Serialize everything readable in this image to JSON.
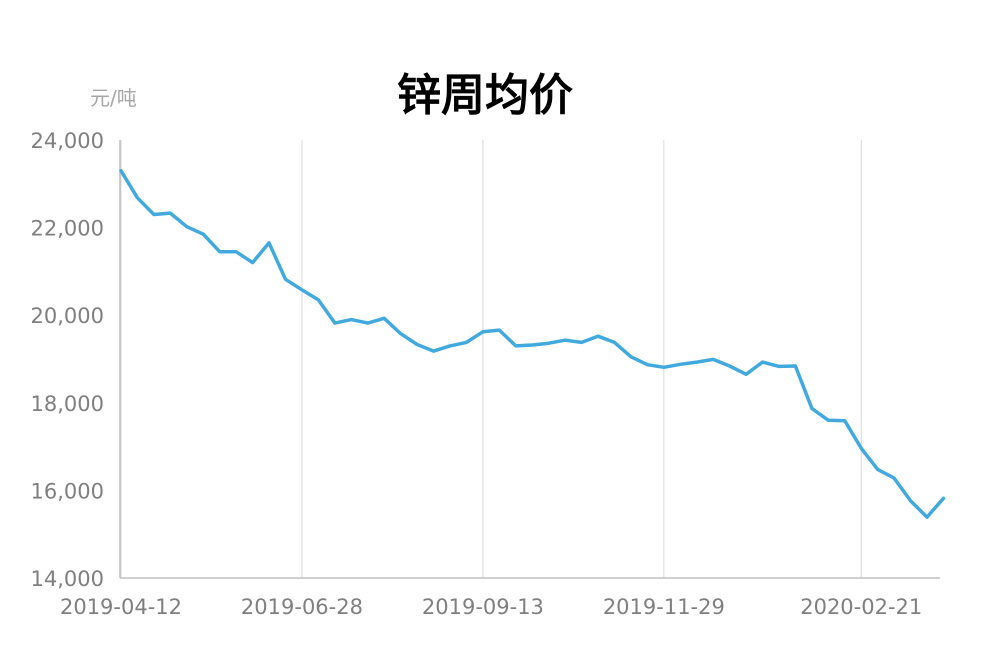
{
  "chart_data": {
    "type": "line",
    "title": "锌周均价",
    "ylabel": "元/吨",
    "xlabel": "",
    "ylim": [
      14000,
      24000
    ],
    "yticks": [
      14000,
      16000,
      18000,
      20000,
      22000,
      24000
    ],
    "ytick_labels": [
      "14,000",
      "16,000",
      "18,000",
      "20,000",
      "22,000",
      "24,000"
    ],
    "xtick_labels": [
      "2019-04-12",
      "2019-06-28",
      "2019-09-13",
      "2019-11-29",
      "2020-02-21"
    ],
    "xtick_positions": [
      0,
      11,
      22,
      33,
      45
    ],
    "grid": "vertical",
    "legend": "none",
    "color": "#41a9dd",
    "series": [
      {
        "values": [
          23300,
          22680,
          22300,
          22330,
          22020,
          21850,
          21450,
          21450,
          21200,
          21650,
          20820,
          20580,
          20350,
          19820,
          19900,
          19820,
          19930,
          19580,
          19330,
          19180,
          19300,
          19380,
          19620,
          19660,
          19300,
          19320,
          19360,
          19430,
          19380,
          19520,
          19380,
          19050,
          18870,
          18810,
          18880,
          18930,
          18990,
          18840,
          18650,
          18930,
          18830,
          18840,
          17870,
          17600,
          17590,
          16960,
          16480,
          16280,
          15760,
          15390,
          15820
        ]
      }
    ]
  }
}
